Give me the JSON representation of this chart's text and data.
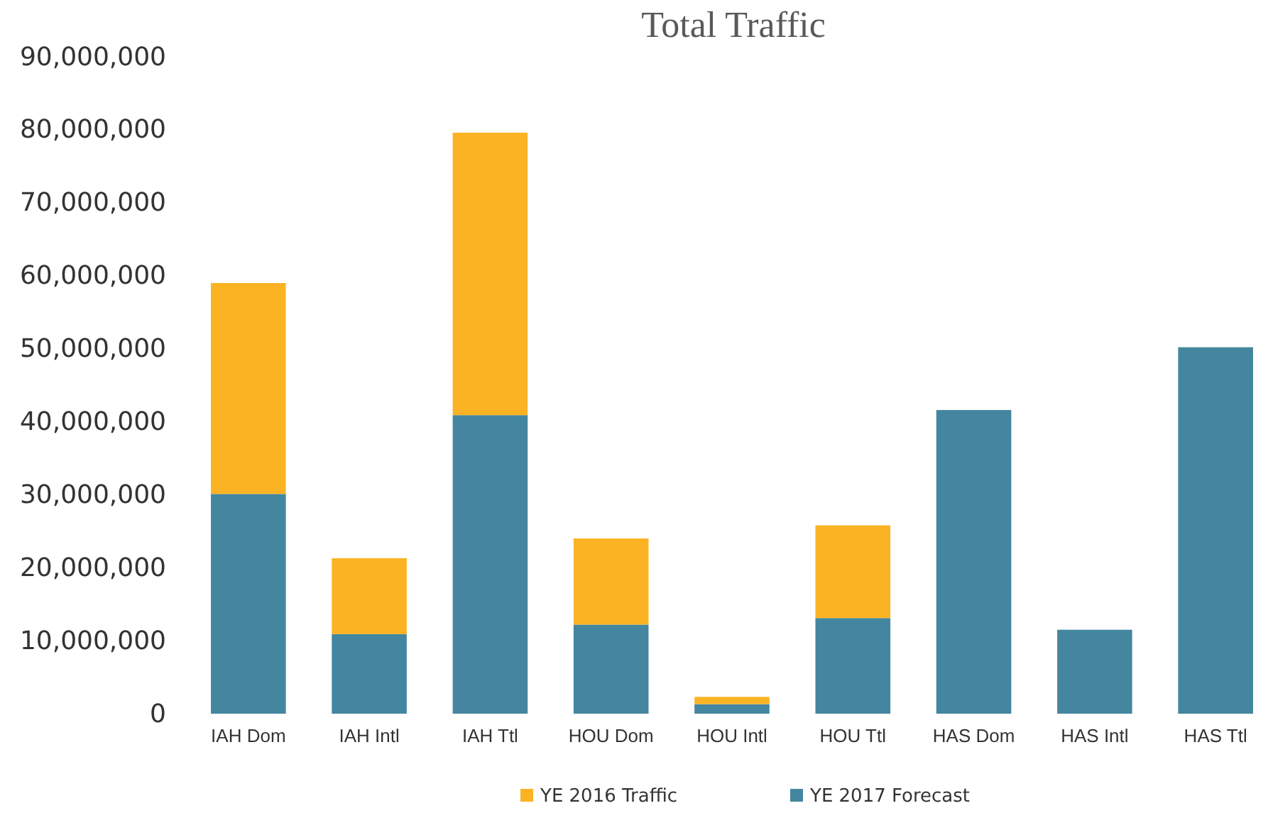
{
  "chart_data": {
    "type": "bar",
    "title": "Total Traffic",
    "stacked": true,
    "legend": "bottom",
    "grid": false,
    "categories": [
      "IAH Dom",
      "IAH Intl",
      "IAH Ttl",
      "HOU Dom",
      "HOU Intl",
      "HOU Ttl",
      "HAS Dom",
      "HAS Intl",
      "HAS Ttl"
    ],
    "series": [
      {
        "name": "YE 2017 Forecast",
        "color": "#44869f",
        "values": [
          30100000,
          10900000,
          40900000,
          12200000,
          1300000,
          13100000,
          41600000,
          11500000,
          50200000
        ]
      },
      {
        "name": "YE 2016 Traffic",
        "color": "#fbb323",
        "values": [
          28900000,
          10400000,
          38700000,
          11800000,
          1000000,
          12700000,
          null,
          null,
          null
        ]
      }
    ],
    "ylim": [
      0,
      90000000
    ],
    "yticks": [
      {
        "value": 0,
        "label": "0"
      },
      {
        "value": 10000000,
        "label": "10,000,000"
      },
      {
        "value": 20000000,
        "label": "20,000,000"
      },
      {
        "value": 30000000,
        "label": "30,000,000"
      },
      {
        "value": 40000000,
        "label": "40,000,000"
      },
      {
        "value": 50000000,
        "label": "50,000,000"
      },
      {
        "value": 60000000,
        "label": "60,000,000"
      },
      {
        "value": 70000000,
        "label": "70,000,000"
      },
      {
        "value": 80000000,
        "label": "80,000,000"
      },
      {
        "value": 90000000,
        "label": "90,000,000"
      }
    ]
  }
}
